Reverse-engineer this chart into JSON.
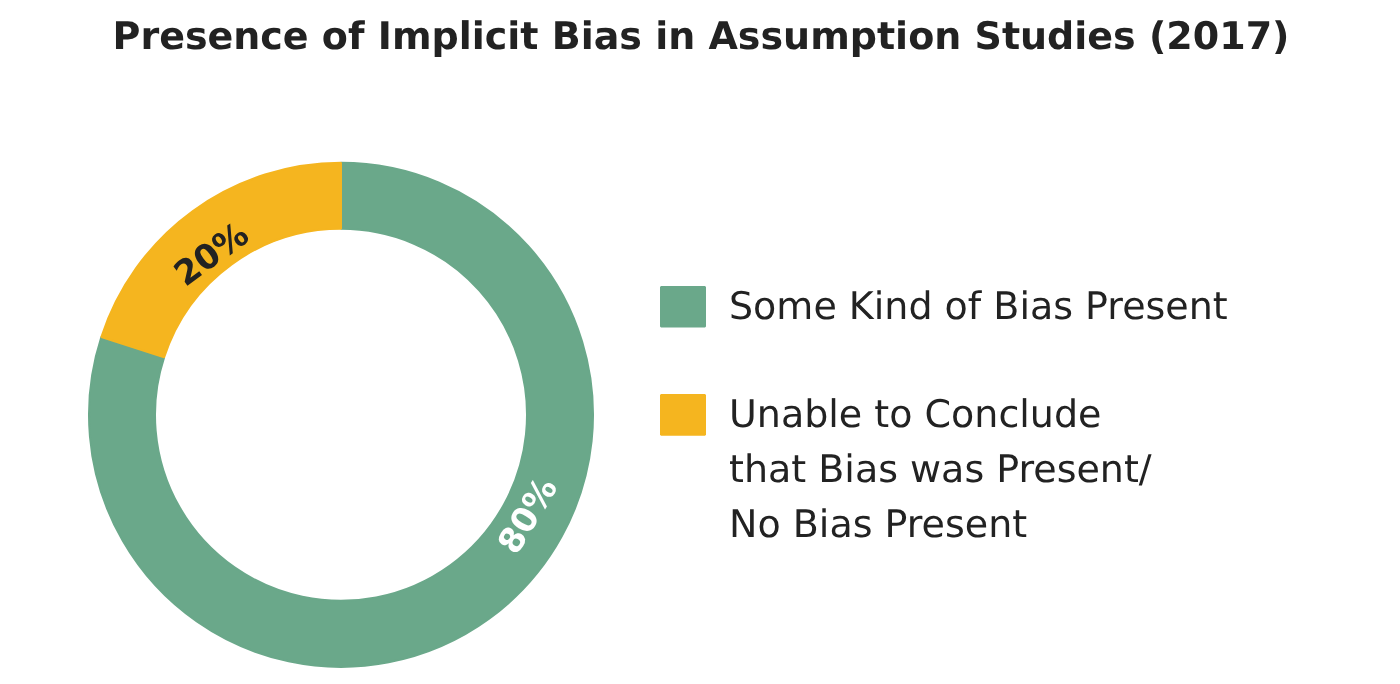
{
  "chart_data": {
    "type": "donut",
    "title": "Presence of Implicit Bias in Assumption Studies (2017)",
    "categories": [
      "Some Kind of Bias Present",
      "Unable to Conclude\nthat Bias was Present/\nNo Bias Present"
    ],
    "values": [
      80,
      20
    ],
    "colors": [
      "#6aa88a",
      "#f5b51f"
    ],
    "value_labels": [
      "80%",
      "20%"
    ],
    "legend": "right"
  }
}
